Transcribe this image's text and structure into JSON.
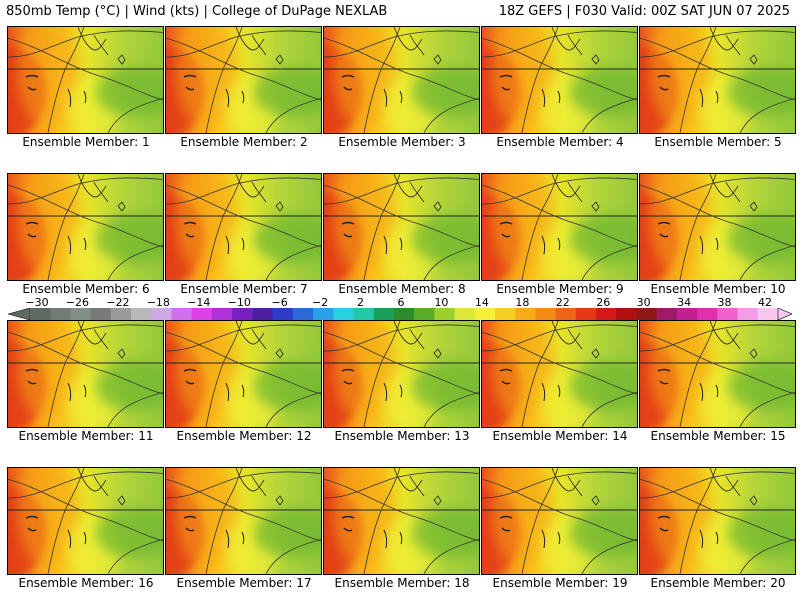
{
  "header": {
    "left": "850mb Temp (°C) | Wind (kts) | College of DuPage NEXLAB",
    "right": "18Z GEFS | F030 Valid: 00Z SAT JUN 07 2025"
  },
  "members": [
    "Ensemble Member: 1",
    "Ensemble Member: 2",
    "Ensemble Member: 3",
    "Ensemble Member: 4",
    "Ensemble Member: 5",
    "Ensemble Member: 6",
    "Ensemble Member: 7",
    "Ensemble Member: 8",
    "Ensemble Member: 9",
    "Ensemble Member: 10",
    "Ensemble Member: 11",
    "Ensemble Member: 12",
    "Ensemble Member: 13",
    "Ensemble Member: 14",
    "Ensemble Member: 15",
    "Ensemble Member: 16",
    "Ensemble Member: 17",
    "Ensemble Member: 18",
    "Ensemble Member: 19",
    "Ensemble Member: 20"
  ],
  "colorbar": {
    "labels": [
      "-30",
      "-26",
      "-22",
      "-18",
      "-14",
      "-10",
      "-6",
      "-2",
      "2",
      "6",
      "10",
      "14",
      "18",
      "22",
      "26",
      "30",
      "34",
      "38",
      "42"
    ],
    "colors": [
      "#5e6a62",
      "#6f7d74",
      "#828f86",
      "#7a7a7a",
      "#9a9a9a",
      "#b8b8b8",
      "#cfa8e6",
      "#d070f0",
      "#e040e8",
      "#b030d8",
      "#7a20c0",
      "#4a20a0",
      "#2c3cc8",
      "#2b6ad8",
      "#2aa0e8",
      "#26d0e0",
      "#22c8a8",
      "#1aa058",
      "#2c8c28",
      "#5aac26",
      "#9cd02c",
      "#dce83a",
      "#f6f03a",
      "#f8d020",
      "#f8ac18",
      "#f48a16",
      "#ee6418",
      "#e43818",
      "#d21818",
      "#b01010",
      "#8e1818",
      "#a01a6a",
      "#c02090",
      "#e030b0",
      "#f060d0",
      "#f59ce6",
      "#f8c8f0"
    ]
  }
}
